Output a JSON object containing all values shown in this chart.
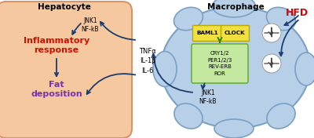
{
  "title_left": "Hepatocyte",
  "title_right": "Macrophage",
  "hfd_label": "HFD",
  "inflammatory_label": "Inflammatory\nresponse",
  "fat_label": "Fat\ndeposition",
  "jnk_left": "JNK1\nNF-kB",
  "jnk_right": "JNK1\nNF-kB",
  "cytokines": "TNFα\nIL-1β\nIL-6",
  "baml1_label": "BAML1",
  "clock_label": "CLOCK",
  "clock_genes": "CRY1/2\nPER1/2/3\nREV-ERB\nROR",
  "hepatocyte_fill": "#f5c8a0",
  "hepatocyte_edge": "#d4956a",
  "macrophage_fill": "#b8cfe8",
  "macrophage_edge": "#7aa0c4",
  "inflammatory_color": "#cc1100",
  "fat_color": "#7733aa",
  "arrow_color": "#1a3d6e",
  "baml1_fill": "#f0e040",
  "baml1_edge": "#b8a800",
  "clock_fill": "#f0e040",
  "clock_edge": "#b8a800",
  "genes_fill": "#c5e8a0",
  "genes_edge": "#5aaa20",
  "genes_arrow_color": "#338800",
  "hfd_color": "#dd0000",
  "background_color": "#ffffff"
}
